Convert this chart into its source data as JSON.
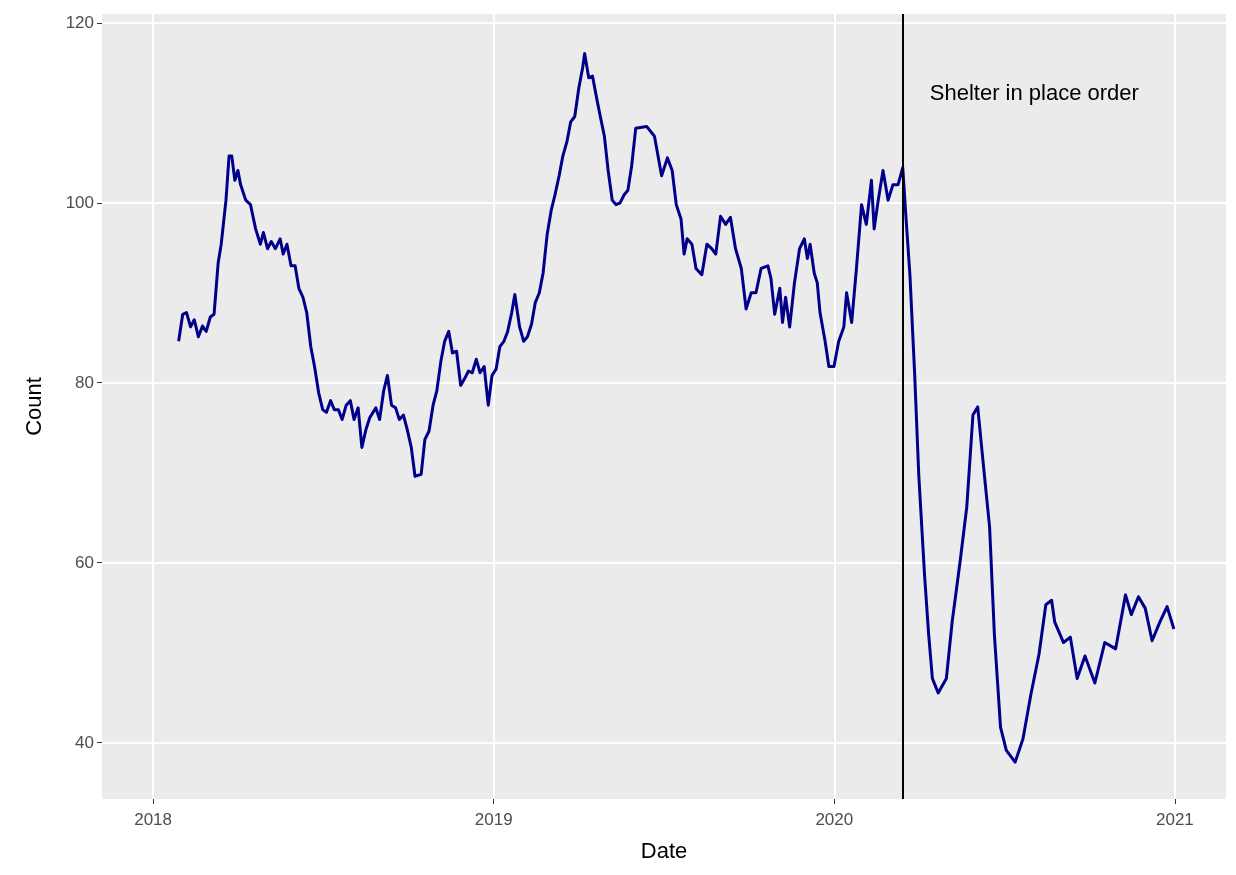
{
  "chart_data": {
    "type": "line",
    "xlabel": "Date",
    "ylabel": "Count",
    "x": [
      2018.075,
      2018.087,
      2018.098,
      2018.11,
      2018.121,
      2018.133,
      2018.145,
      2018.156,
      2018.168,
      2018.179,
      2018.191,
      2018.2,
      2018.214,
      2018.223,
      2018.231,
      2018.24,
      2018.249,
      2018.257,
      2018.272,
      2018.286,
      2018.301,
      2018.315,
      2018.324,
      2018.336,
      2018.347,
      2018.359,
      2018.373,
      2018.382,
      2018.393,
      2018.405,
      2018.417,
      2018.428,
      2018.44,
      2018.451,
      2018.463,
      2018.474,
      2018.486,
      2018.498,
      2018.509,
      2018.521,
      2018.532,
      2018.544,
      2018.555,
      2018.567,
      2018.579,
      2018.59,
      2018.602,
      2018.613,
      2018.625,
      2018.636,
      2018.654,
      2018.665,
      2018.677,
      2018.688,
      2018.7,
      2018.712,
      2018.723,
      2018.735,
      2018.746,
      2018.758,
      2018.769,
      2018.787,
      2018.798,
      2018.81,
      2018.822,
      2018.833,
      2018.845,
      2018.856,
      2018.868,
      2018.879,
      2018.891,
      2018.903,
      2018.914,
      2018.926,
      2018.937,
      2018.949,
      2018.96,
      2018.972,
      2018.984,
      2018.995,
      2019.007,
      2019.018,
      2019.03,
      2019.041,
      2019.053,
      2019.062,
      2019.076,
      2019.088,
      2019.099,
      2019.111,
      2019.122,
      2019.134,
      2019.145,
      2019.157,
      2019.169,
      2019.18,
      2019.192,
      2019.203,
      2019.215,
      2019.226,
      2019.238,
      2019.25,
      2019.261,
      2019.267,
      2019.279,
      2019.29,
      2019.302,
      2019.313,
      2019.325,
      2019.336,
      2019.348,
      2019.359,
      2019.371,
      2019.383,
      2019.394,
      2019.405,
      2019.417,
      2019.449,
      2019.472,
      2019.493,
      2019.51,
      2019.524,
      2019.536,
      2019.55,
      2019.559,
      2019.568,
      2019.582,
      2019.594,
      2019.611,
      2019.626,
      2019.64,
      2019.652,
      2019.666,
      2019.681,
      2019.695,
      2019.71,
      2019.727,
      2019.741,
      2019.756,
      2019.77,
      2019.785,
      2019.805,
      2019.814,
      2019.825,
      2019.84,
      2019.848,
      2019.857,
      2019.869,
      2019.883,
      2019.898,
      2019.912,
      2019.921,
      2019.929,
      2019.941,
      2019.95,
      2019.958,
      2019.973,
      2019.984,
      2019.999,
      2020.013,
      2020.028,
      2020.036,
      2020.051,
      2020.065,
      2020.08,
      2020.094,
      2020.109,
      2020.117,
      2020.129,
      2020.143,
      2020.158,
      2020.172,
      2020.187,
      2020.201,
      2020.21,
      2020.222,
      2020.236,
      2020.248,
      2020.265,
      2020.277,
      2020.288,
      2020.305,
      2020.329,
      2020.346,
      2020.369,
      2020.389,
      2020.407,
      2020.421,
      2020.436,
      2020.456,
      2020.47,
      2020.488,
      2020.505,
      2020.531,
      2020.554,
      2020.577,
      2020.601,
      2020.621,
      2020.638,
      2020.647,
      2020.673,
      2020.693,
      2020.713,
      2020.736,
      2020.765,
      2020.794,
      2020.826,
      2020.855,
      2020.872,
      2020.893,
      2020.913,
      2020.933,
      2020.956,
      2020.977,
      2020.997
    ],
    "series": [
      {
        "color": "#00008b",
        "values": [
          84.6,
          87.6,
          87.8,
          86.2,
          87.0,
          85.1,
          86.3,
          85.7,
          87.3,
          87.6,
          93.3,
          95.4,
          100.3,
          105.2,
          105.2,
          102.5,
          103.6,
          102.0,
          100.3,
          99.8,
          97.1,
          95.4,
          96.7,
          94.9,
          95.7,
          94.9,
          96.0,
          94.3,
          95.4,
          93.0,
          93.0,
          90.5,
          89.5,
          87.8,
          84.0,
          81.8,
          78.9,
          77.0,
          76.7,
          78.0,
          77.0,
          77.0,
          75.9,
          77.5,
          78.0,
          75.9,
          77.2,
          72.8,
          74.8,
          76.1,
          77.2,
          75.9,
          79.1,
          80.8,
          77.5,
          77.2,
          75.9,
          76.4,
          74.8,
          72.8,
          69.6,
          69.8,
          73.7,
          74.6,
          77.5,
          79.1,
          82.4,
          84.6,
          85.7,
          83.3,
          83.5,
          79.7,
          80.4,
          81.3,
          81.1,
          82.6,
          81.1,
          81.8,
          77.5,
          80.8,
          81.5,
          84.0,
          84.6,
          85.7,
          87.8,
          89.8,
          86.2,
          84.6,
          85.1,
          86.5,
          88.9,
          90.0,
          92.2,
          96.5,
          99.2,
          100.9,
          103.0,
          105.2,
          106.8,
          109.0,
          109.6,
          112.8,
          115.0,
          116.6,
          113.9,
          114.1,
          111.7,
          109.6,
          107.4,
          103.6,
          100.3,
          99.8,
          100.0,
          100.9,
          101.4,
          104.1,
          108.3,
          108.5,
          107.4,
          103.0,
          105.0,
          103.6,
          99.8,
          98.2,
          94.3,
          96.0,
          95.4,
          92.7,
          92.0,
          95.4,
          94.9,
          94.3,
          98.5,
          97.6,
          98.4,
          94.9,
          92.7,
          88.2,
          90.0,
          90.0,
          92.7,
          93.0,
          91.6,
          87.6,
          90.5,
          86.7,
          89.5,
          86.2,
          91.1,
          94.9,
          96.0,
          93.8,
          95.4,
          92.2,
          91.1,
          87.8,
          84.6,
          81.8,
          81.8,
          84.6,
          86.2,
          90.0,
          86.7,
          92.7,
          99.8,
          97.6,
          102.5,
          97.1,
          100.3,
          103.6,
          100.3,
          102.0,
          102.0,
          103.9,
          98.6,
          92.0,
          80.9,
          69.7,
          58.6,
          52.0,
          47.1,
          45.5,
          47.1,
          53.4,
          60.0,
          66.2,
          76.4,
          77.3,
          71.5,
          63.9,
          52.0,
          41.7,
          39.1,
          37.8,
          40.4,
          45.3,
          49.8,
          55.3,
          55.8,
          53.4,
          51.1,
          51.7,
          47.1,
          49.6,
          46.6,
          51.1,
          50.4,
          56.4,
          54.2,
          56.2,
          54.9,
          51.3,
          53.4,
          55.1,
          52.6
        ]
      }
    ],
    "xlim": [
      2017.85,
      2021.15
    ],
    "xticks": [
      2018,
      2019,
      2020,
      2021
    ],
    "ylim": [
      33.7,
      121
    ],
    "yticks": [
      40,
      60,
      80,
      100,
      120
    ],
    "ref_lines": [
      {
        "axis": "x",
        "value": 2020.204,
        "label": "Shelter in place order",
        "color": "#000000"
      }
    ],
    "grid": true,
    "marker": "none",
    "line_style": "solid"
  }
}
